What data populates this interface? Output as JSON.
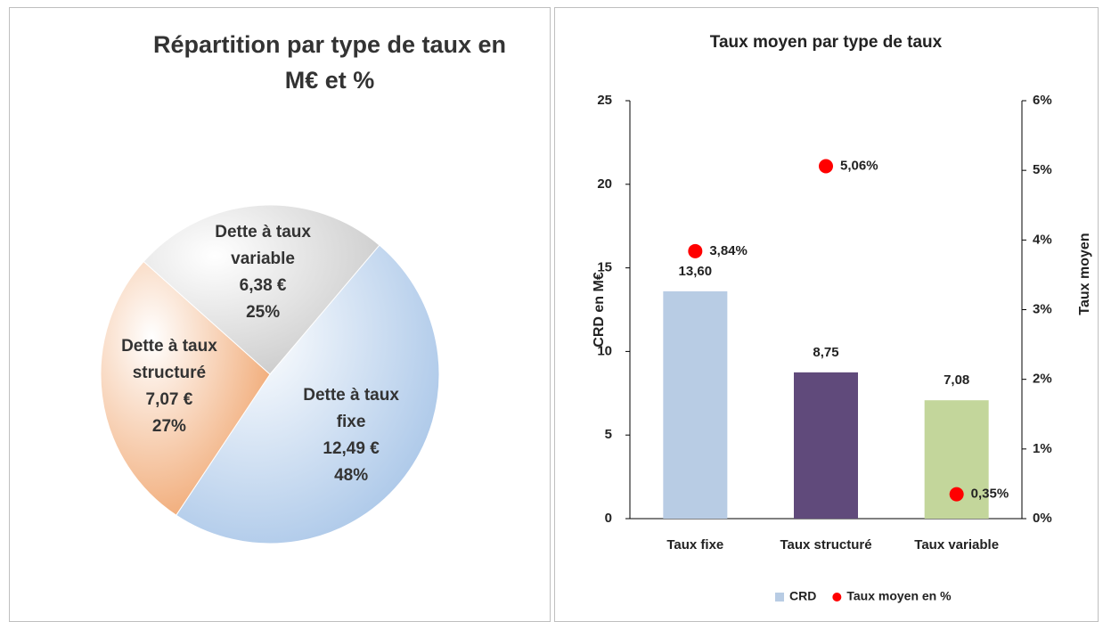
{
  "chart_data": [
    {
      "type": "pie",
      "title": "Répartition par type de taux en M€ et %",
      "categories": [
        "Dette à taux fixe",
        "Dette à taux structuré",
        "Dette à taux variable"
      ],
      "values": [
        12.49,
        7.07,
        6.38
      ],
      "value_labels": [
        "12,49 €",
        "7,07 €",
        "6,38 €"
      ],
      "percents": [
        48,
        27,
        25
      ],
      "percent_labels": [
        "48%",
        "27%",
        "25%"
      ],
      "colors": [
        "#a9c6e8",
        "#f0a56e",
        "#c9c9c9"
      ]
    },
    {
      "type": "bar",
      "title": "Taux moyen par type de taux",
      "categories": [
        "Taux fixe",
        "Taux structuré",
        "Taux variable"
      ],
      "ylabel": "CRD en M€",
      "y2label": "Taux moyen",
      "ylim": [
        0,
        25
      ],
      "yticks": [
        0,
        5,
        10,
        15,
        20,
        25
      ],
      "y2lim": [
        0,
        6
      ],
      "y2ticks": [
        {
          "value": 0,
          "label": "0%"
        },
        {
          "value": 1,
          "label": "1%"
        },
        {
          "value": 2,
          "label": "2%"
        },
        {
          "value": 3,
          "label": "3%"
        },
        {
          "value": 4,
          "label": "4%"
        },
        {
          "value": 5,
          "label": "5%"
        },
        {
          "value": 6,
          "label": "6%"
        }
      ],
      "series": [
        {
          "name": "CRD",
          "color": "#b8cce4",
          "colors": [
            "#b8cce4",
            "#604a7b",
            "#c3d69b"
          ],
          "values": [
            13.6,
            8.75,
            7.08
          ],
          "value_labels": [
            "13,60",
            "8,75",
            "7,08"
          ]
        },
        {
          "name": "Taux moyen en %",
          "color": "#ff0000",
          "axis": "y2",
          "marker": "dot",
          "values": [
            3.84,
            5.06,
            0.35
          ],
          "value_labels": [
            "3,84%",
            "5,06%",
            "0,35%"
          ]
        }
      ],
      "legend": "bottom"
    }
  ]
}
